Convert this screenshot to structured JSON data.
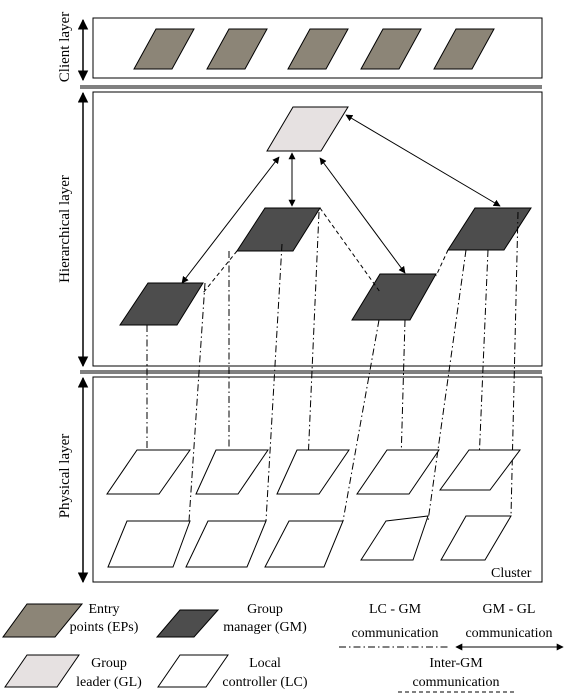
{
  "layers": {
    "client": "Client layer",
    "hierarchical": "Hierarchical layer",
    "physical": "Physical layer"
  },
  "cluster_label": "Cluster",
  "legend": {
    "ep_line1": "Entry",
    "ep_line2": "points (EPs)",
    "gm_line1": "Group",
    "gm_line2": "manager (GM)",
    "gl_line1": "Group",
    "gl_line2": "leader (GL)",
    "lc_line1": "Local",
    "lc_line2": "controller (LC)",
    "lcgm_line1": "LC - GM",
    "lcgm_line2": "communication",
    "gmgl_line1": "GM - GL",
    "gmgl_line2": "communication",
    "intergm_line1": "Inter-GM",
    "intergm_line2": "communication"
  },
  "colors": {
    "entry_point": "#8c8577",
    "group_manager": "#4d4d4d",
    "group_leader": "#e6e1e1",
    "local_controller": "#ffffff"
  }
}
